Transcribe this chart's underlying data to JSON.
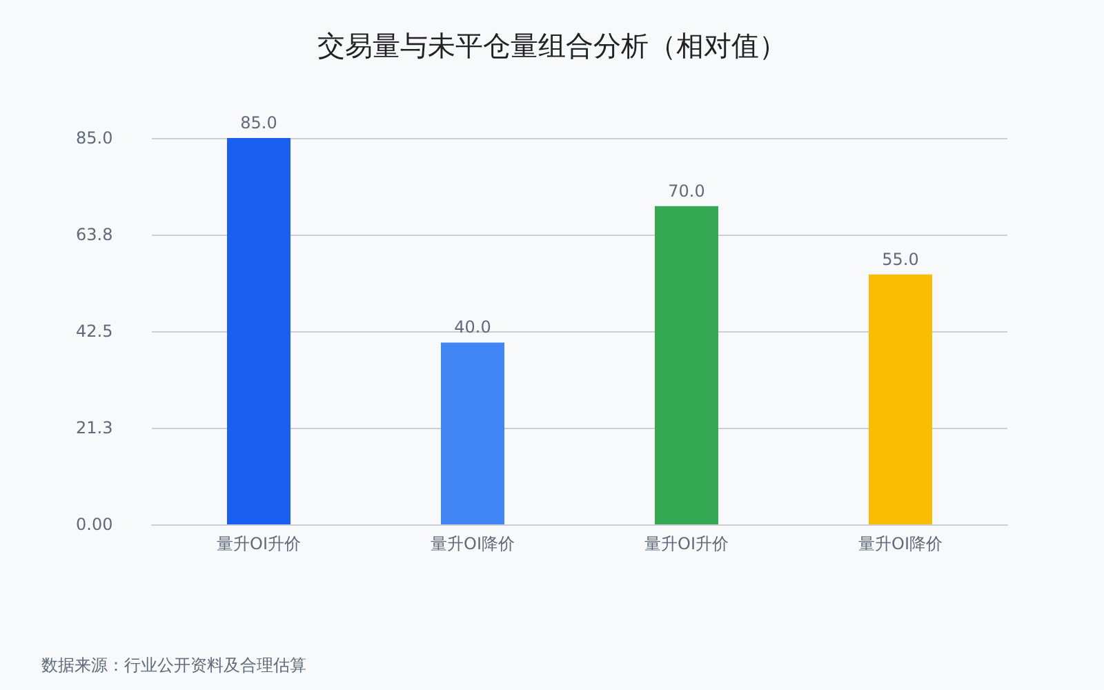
{
  "chart_data": {
    "type": "bar",
    "title": "交易量与未平仓量组合分析（相对值）",
    "categories": [
      "量升OI升价",
      "量升OI降价",
      "量升OI升价",
      "量升OI降价"
    ],
    "values": [
      85,
      40,
      70,
      55
    ],
    "colors": [
      "#1a5ff0",
      "#4285f4",
      "#34a853",
      "#fbbc04"
    ],
    "value_labels": [
      "85.0",
      "40.0",
      "70.0",
      "55.0"
    ],
    "ylim": [
      0,
      85
    ],
    "yticks": [
      {
        "value": 0,
        "label": "0.00"
      },
      {
        "value": 21.25,
        "label": "21.3"
      },
      {
        "value": 42.5,
        "label": "42.5"
      },
      {
        "value": 63.75,
        "label": "63.8"
      },
      {
        "value": 85,
        "label": "85.0"
      }
    ],
    "grid": "y",
    "annotations": [
      "数据来源：行业公开资料及合理估算"
    ]
  }
}
